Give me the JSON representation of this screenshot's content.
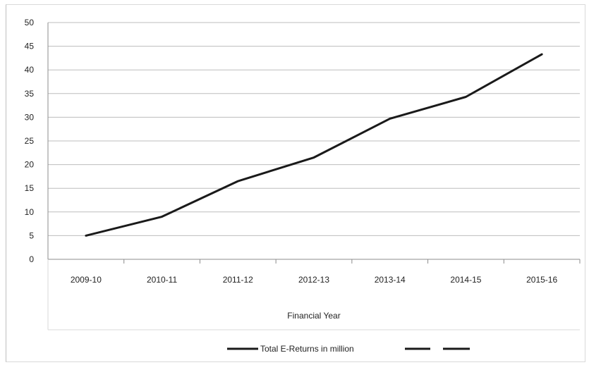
{
  "chart_data": {
    "type": "line",
    "title": "",
    "xlabel": "Financial Year",
    "ylabel": "",
    "categories": [
      "2009-10",
      "2010-11",
      "2011-12",
      "2012-13",
      "2013-14",
      "2014-15",
      "2015-16"
    ],
    "series": [
      {
        "name": "Total E-Returns in million",
        "values": [
          5,
          9,
          16.5,
          21.5,
          29.7,
          34.3,
          43.3
        ],
        "color": "#1a1a1a"
      }
    ],
    "ylim": [
      0,
      50
    ],
    "yticks": [
      "0",
      "5",
      "10",
      "15",
      "20",
      "25",
      "30",
      "35",
      "40",
      "45",
      "50"
    ],
    "grid": true,
    "legend_position": "bottom"
  }
}
